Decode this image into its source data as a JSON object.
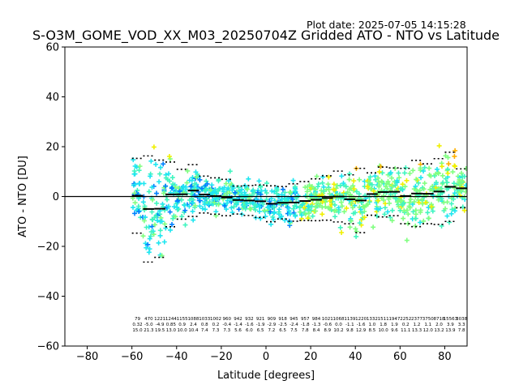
{
  "plot_date_label": "Plot date: 2025-07-05 14:15:28",
  "chart_data": {
    "type": "scatter",
    "title": "S-O3M_GOME_VOD_XX_M03_20250704Z Gridded ATO - NTO vs Latitude",
    "xlabel": "Latitude [degrees]",
    "ylabel": "ATO - NTO [DU]",
    "xlim": [
      -90,
      90
    ],
    "ylim": [
      -60,
      60
    ],
    "xticks": [
      "−80",
      "−60",
      "−40",
      "−20",
      "0",
      "20",
      "40",
      "60",
      "80"
    ],
    "xtick_values": [
      -80,
      -60,
      -40,
      -20,
      0,
      20,
      40,
      60,
      80
    ],
    "yticks": [
      "−60",
      "−40",
      "−20",
      "0",
      "20",
      "40",
      "60"
    ],
    "ytick_values": [
      -60,
      -40,
      -20,
      0,
      20,
      40,
      60
    ],
    "grid": false,
    "zero_line": 0,
    "marker": "plus",
    "colors": {
      "dark_blue": "#0000e0",
      "blue": "#0080ff",
      "cyan": "#1fe6f0",
      "aquamarine": "#40f5c0",
      "light_green": "#80ff80",
      "yellow": "#f0f000",
      "orange": "#ffb000"
    },
    "bins": [
      {
        "lat": -57.5,
        "count": "79",
        "mean": "0.32",
        "std": "15.0"
      },
      {
        "lat": -52.5,
        "count": "470",
        "mean": "-5.0",
        "std": "21.3"
      },
      {
        "lat": -47.5,
        "count": "1221",
        "mean": "-4.9",
        "std": "19.5"
      },
      {
        "lat": -42.5,
        "count": "1244",
        "mean": "0.85",
        "std": "13.0"
      },
      {
        "lat": -37.5,
        "count": "1155",
        "mean": "0.9",
        "std": "10.0"
      },
      {
        "lat": -32.5,
        "count": "1088",
        "mean": "2.4",
        "std": "10.4"
      },
      {
        "lat": -27.5,
        "count": "1033",
        "mean": "0.8",
        "std": "7.4"
      },
      {
        "lat": -22.5,
        "count": "1002",
        "mean": "0.2",
        "std": "7.3"
      },
      {
        "lat": -17.5,
        "count": "960",
        "mean": "-0.4",
        "std": "7.3"
      },
      {
        "lat": -12.5,
        "count": "942",
        "mean": "-1.4",
        "std": "5.6"
      },
      {
        "lat": -7.5,
        "count": "932",
        "mean": "-1.6",
        "std": "6.0"
      },
      {
        "lat": -2.5,
        "count": "921",
        "mean": "-1.9",
        "std": "6.5"
      },
      {
        "lat": 2.5,
        "count": "909",
        "mean": "-2.9",
        "std": "7.2"
      },
      {
        "lat": 7.5,
        "count": "918",
        "mean": "-2.5",
        "std": "6.5"
      },
      {
        "lat": 12.5,
        "count": "945",
        "mean": "-2.4",
        "std": "7.5"
      },
      {
        "lat": 17.5,
        "count": "957",
        "mean": "-1.8",
        "std": "7.8"
      },
      {
        "lat": 22.5,
        "count": "984",
        "mean": "-1.3",
        "std": "8.4"
      },
      {
        "lat": 27.5,
        "count": "1021",
        "mean": "-0.6",
        "std": "8.9"
      },
      {
        "lat": 32.5,
        "count": "1068",
        "mean": "0.0",
        "std": "10.2"
      },
      {
        "lat": 37.5,
        "count": "1139",
        "mean": "-1.1",
        "std": "9.8"
      },
      {
        "lat": 42.5,
        "count": "1220",
        "mean": "-1.6",
        "std": "12.9"
      },
      {
        "lat": 47.5,
        "count": "1332",
        "mean": "1.0",
        "std": "8.5"
      },
      {
        "lat": 52.5,
        "count": "1511",
        "mean": "1.8",
        "std": "10.0"
      },
      {
        "lat": 57.5,
        "count": "1947",
        "mean": "1.9",
        "std": "9.6"
      },
      {
        "lat": 62.5,
        "count": "2252",
        "mean": "0.2",
        "std": "11.1"
      },
      {
        "lat": 67.5,
        "count": "2377",
        "mean": "1.2",
        "std": "13.3"
      },
      {
        "lat": 72.5,
        "count": "3750",
        "mean": "1.1",
        "std": "12.0"
      },
      {
        "lat": 77.5,
        "count": "8718",
        "mean": "2.0",
        "std": "13.2"
      },
      {
        "lat": 82.5,
        "count": "15563",
        "mean": "3.9",
        "std": "13.9"
      },
      {
        "lat": 87.5,
        "count": "3038",
        "mean": "3.3",
        "std": "7.8"
      }
    ]
  }
}
